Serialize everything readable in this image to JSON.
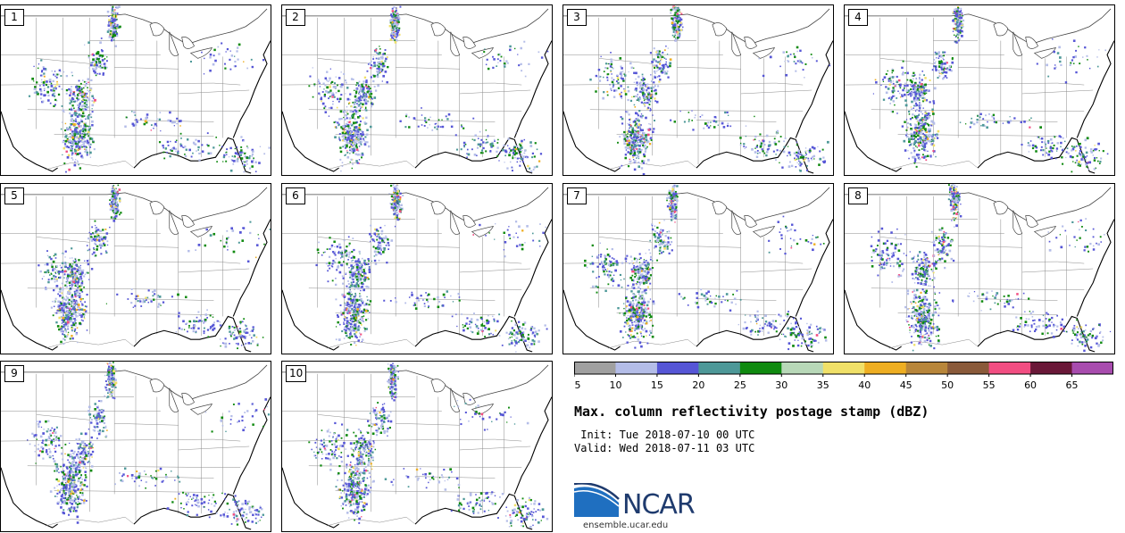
{
  "panels": [
    {
      "label": "1"
    },
    {
      "label": "2"
    },
    {
      "label": "3"
    },
    {
      "label": "4"
    },
    {
      "label": "5"
    },
    {
      "label": "6"
    },
    {
      "label": "7"
    },
    {
      "label": "8"
    },
    {
      "label": "9"
    },
    {
      "label": "10"
    }
  ],
  "colorbar": {
    "unit": "dBZ",
    "ticks": [
      "5",
      "10",
      "15",
      "20",
      "25",
      "30",
      "35",
      "40",
      "45",
      "50",
      "55",
      "60",
      "65"
    ],
    "colors": [
      "#a0a0a0",
      "#b4bde8",
      "#5656d6",
      "#4d9898",
      "#108a10",
      "#b8d8b8",
      "#f0e068",
      "#eeae22",
      "#b8863a",
      "#8a5a3a",
      "#f24e82",
      "#6a1838",
      "#a84cae"
    ]
  },
  "title": "Max. column reflectivity postage stamp (dBZ)",
  "init": " Init: Tue 2018-07-10 00 UTC",
  "valid": "Valid: Wed 2018-07-11 03 UTC",
  "logo": {
    "text": "NCAR",
    "url": "ensemble.ucar.edu",
    "colors": {
      "blue": "#1f5aa6",
      "navy": "#1f3b6e"
    }
  }
}
